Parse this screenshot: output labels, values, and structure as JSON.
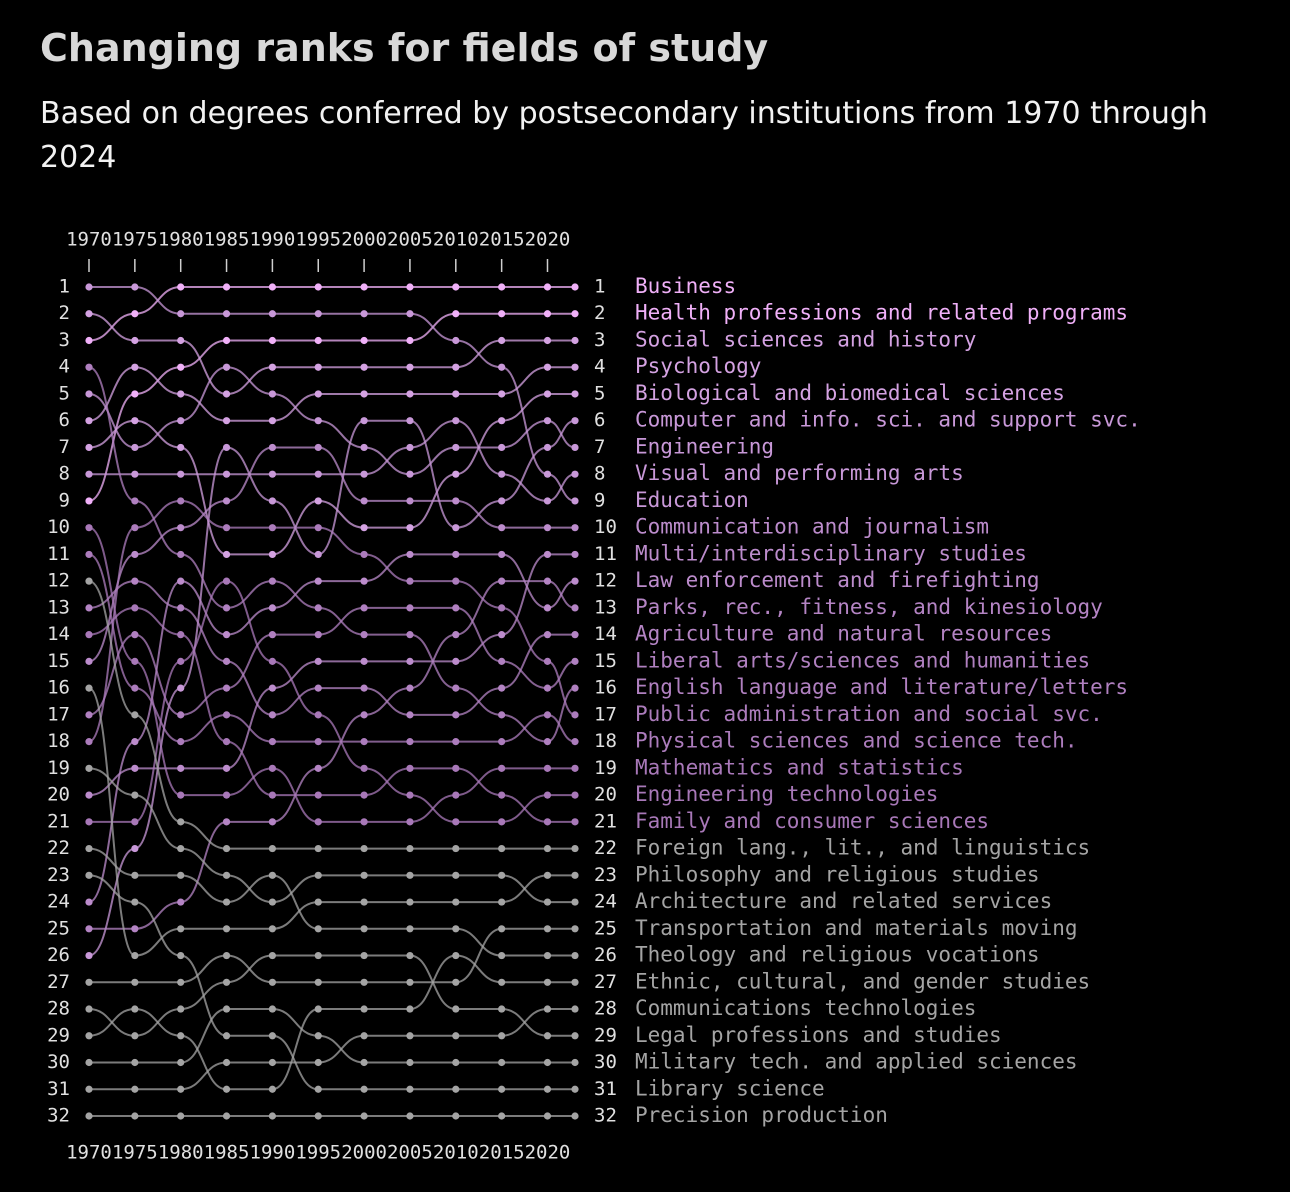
{
  "chart_data": {
    "type": "bump",
    "title": "Changing ranks for fields of study",
    "subtitle": "Based on degrees conferred by postsecondary institutions from 1970 through 2024",
    "x": [
      1970,
      1975,
      1980,
      1985,
      1990,
      1995,
      2000,
      2005,
      2010,
      2015,
      2020,
      2023
    ],
    "xlim": [
      1970,
      2023
    ],
    "xticks": [
      1970,
      1975,
      1980,
      1985,
      1990,
      1995,
      2000,
      2005,
      2010,
      2015,
      2020
    ],
    "ylim": [
      1,
      32
    ],
    "y_reversed": true,
    "yticks": [
      1,
      2,
      3,
      4,
      5,
      6,
      7,
      8,
      9,
      10,
      11,
      12,
      13,
      14,
      15,
      16,
      17,
      18,
      19,
      20,
      21,
      22,
      23,
      24,
      25,
      26,
      27,
      28,
      29,
      30,
      31,
      32
    ],
    "series": [
      {
        "name": "Business",
        "color": "#f0b0f8",
        "values": [
          3,
          2,
          1,
          1,
          1,
          1,
          1,
          1,
          1,
          1,
          1,
          1
        ]
      },
      {
        "name": "Health professions and related programs",
        "color": "#f0b0f8",
        "values": [
          9,
          5,
          4,
          3,
          3,
          3,
          3,
          3,
          2,
          2,
          2,
          2
        ]
      },
      {
        "name": "Social sciences and history",
        "color": "#d4a2e2",
        "values": [
          2,
          3,
          3,
          5,
          4,
          4,
          4,
          4,
          4,
          3,
          3,
          3
        ]
      },
      {
        "name": "Psychology",
        "color": "#d4a2e2",
        "values": [
          6,
          4,
          5,
          6,
          6,
          5,
          5,
          5,
          5,
          5,
          4,
          4
        ]
      },
      {
        "name": "Biological and biomedical sciences",
        "color": "#d4a2e2",
        "values": [
          7,
          6,
          7,
          11,
          11,
          9,
          10,
          10,
          8,
          6,
          5,
          5
        ]
      },
      {
        "name": "Computer and info. sci. and support svc.",
        "color": "#c898d8",
        "values": [
          26,
          22,
          16,
          7,
          9,
          11,
          6,
          6,
          10,
          9,
          7,
          6
        ]
      },
      {
        "name": "Engineering",
        "color": "#c898d8",
        "values": [
          5,
          7,
          6,
          4,
          5,
          6,
          7,
          8,
          7,
          7,
          6,
          7
        ]
      },
      {
        "name": "Visual and performing arts",
        "color": "#c898d8",
        "values": [
          8,
          8,
          8,
          8,
          8,
          8,
          8,
          7,
          6,
          8,
          9,
          8
        ]
      },
      {
        "name": "Education",
        "color": "#c898d8",
        "values": [
          1,
          1,
          2,
          2,
          2,
          2,
          2,
          2,
          3,
          4,
          8,
          9
        ]
      },
      {
        "name": "Communication and journalism",
        "color": "#bc8ccc",
        "values": [
          15,
          11,
          10,
          9,
          7,
          7,
          9,
          9,
          9,
          10,
          10,
          10
        ]
      },
      {
        "name": "Multi/interdisciplinary studies",
        "color": "#bc8ccc",
        "values": [
          20,
          19,
          19,
          19,
          16,
          15,
          15,
          15,
          15,
          14,
          11,
          11
        ]
      },
      {
        "name": "Law enforcement and firefighting",
        "color": "#bc8ccc",
        "values": [
          24,
          18,
          12,
          14,
          13,
          12,
          12,
          11,
          11,
          11,
          13,
          12
        ]
      },
      {
        "name": "Parks, rec., fitness, and kinesiology",
        "color": "#b484c4",
        "values": [
          25,
          25,
          24,
          21,
          21,
          19,
          17,
          16,
          14,
          12,
          12,
          13
        ]
      },
      {
        "name": "Agriculture and natural resources",
        "color": "#b484c4",
        "values": [
          13,
          12,
          13,
          15,
          17,
          16,
          16,
          17,
          17,
          16,
          14,
          14
        ]
      },
      {
        "name": "Liberal arts/sciences and humanities",
        "color": "#b080c0",
        "values": [
          17,
          14,
          17,
          16,
          14,
          14,
          13,
          13,
          13,
          15,
          16,
          15
        ]
      },
      {
        "name": "English language and literature/letters",
        "color": "#b080c0",
        "values": [
          4,
          9,
          11,
          13,
          12,
          13,
          14,
          14,
          16,
          17,
          18,
          16
        ]
      },
      {
        "name": "Public administration and social svc.",
        "color": "#ac7cbc",
        "values": [
          18,
          10,
          9,
          10,
          10,
          10,
          11,
          12,
          12,
          13,
          15,
          17
        ]
      },
      {
        "name": "Physical sciences and science tech.",
        "color": "#ac7cbc",
        "values": [
          11,
          16,
          18,
          17,
          18,
          18,
          18,
          18,
          18,
          18,
          17,
          18
        ]
      },
      {
        "name": "Mathematics and statistics",
        "color": "#a878b8",
        "values": [
          10,
          15,
          20,
          20,
          19,
          21,
          21,
          21,
          20,
          19,
          19,
          19
        ]
      },
      {
        "name": "Engineering technologies",
        "color": "#a878b8",
        "values": [
          21,
          21,
          15,
          12,
          15,
          17,
          19,
          20,
          21,
          21,
          20,
          20
        ]
      },
      {
        "name": "Family and consumer sciences",
        "color": "#a878b8",
        "values": [
          14,
          13,
          14,
          18,
          20,
          20,
          20,
          19,
          19,
          20,
          21,
          21
        ]
      },
      {
        "name": "Foreign lang., lit., and linguistics",
        "color": "#a4a4a4",
        "values": [
          12,
          17,
          21,
          22,
          22,
          22,
          22,
          22,
          22,
          22,
          22,
          22
        ]
      },
      {
        "name": "Philosophy and religious studies",
        "color": "#a4a4a4",
        "values": [
          16,
          26,
          25,
          25,
          25,
          24,
          24,
          24,
          24,
          24,
          23,
          23
        ]
      },
      {
        "name": "Architecture and related services",
        "color": "#a4a4a4",
        "values": [
          19,
          20,
          22,
          23,
          24,
          23,
          23,
          23,
          23,
          23,
          24,
          24
        ]
      },
      {
        "name": "Transportation and materials moving",
        "color": "#a4a4a4",
        "values": [
          27,
          27,
          27,
          26,
          27,
          27,
          27,
          27,
          27,
          25,
          25,
          25
        ]
      },
      {
        "name": "Theology and religious vocations",
        "color": "#a4a4a4",
        "values": [
          22,
          23,
          23,
          24,
          23,
          25,
          25,
          25,
          25,
          26,
          26,
          26
        ]
      },
      {
        "name": "Ethnic, cultural, and gender studies",
        "color": "#a4a4a4",
        "values": [
          29,
          28,
          29,
          31,
          31,
          28,
          28,
          28,
          26,
          27,
          27,
          27
        ]
      },
      {
        "name": "Communications technologies",
        "color": "#a4a4a4",
        "values": [
          31,
          31,
          31,
          30,
          30,
          30,
          29,
          29,
          29,
          29,
          28,
          28
        ]
      },
      {
        "name": "Legal professions and studies",
        "color": "#a4a4a4",
        "values": [
          28,
          29,
          28,
          27,
          26,
          26,
          26,
          26,
          28,
          28,
          29,
          29
        ]
      },
      {
        "name": "Military tech. and applied sciences",
        "color": "#a4a4a4",
        "values": [
          30,
          30,
          30,
          28,
          28,
          29,
          30,
          30,
          30,
          30,
          30,
          30
        ]
      },
      {
        "name": "Library science",
        "color": "#a4a4a4",
        "values": [
          23,
          24,
          26,
          29,
          29,
          31,
          31,
          31,
          31,
          31,
          31,
          31
        ]
      },
      {
        "name": "Precision production",
        "color": "#a4a4a4",
        "values": [
          32,
          32,
          32,
          32,
          32,
          32,
          32,
          32,
          32,
          32,
          32,
          32
        ]
      }
    ]
  }
}
